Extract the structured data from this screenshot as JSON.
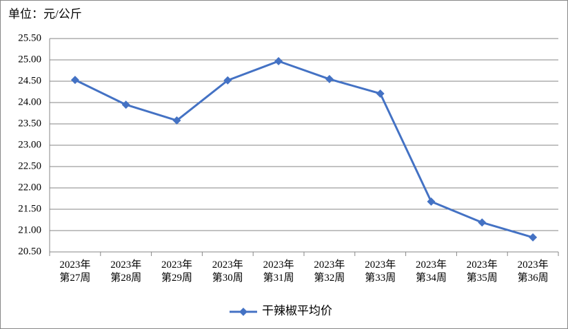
{
  "chart_data": {
    "type": "line",
    "unit_label": "单位：元/公斤",
    "categories": [
      "2023年\n第27周",
      "2023年\n第28周",
      "2023年\n第29周",
      "2023年\n第30周",
      "2023年\n第31周",
      "2023年\n第32周",
      "2023年\n第33周",
      "2023年\n第34周",
      "2023年\n第35周",
      "2023年\n第36周"
    ],
    "series": [
      {
        "name": "干辣椒平均价",
        "color": "#4472c4",
        "values": [
          24.53,
          23.95,
          23.58,
          24.52,
          24.97,
          24.55,
          24.21,
          21.68,
          21.19,
          20.84
        ]
      }
    ],
    "ylim": [
      20.5,
      25.5
    ],
    "yticks": [
      {
        "value": 20.5,
        "label": "20.50"
      },
      {
        "value": 21,
        "label": "21.00"
      },
      {
        "value": 21.5,
        "label": "21.50"
      },
      {
        "value": 22,
        "label": "22.00"
      },
      {
        "value": 22.5,
        "label": "22.50"
      },
      {
        "value": 23,
        "label": "23.00"
      },
      {
        "value": 23.5,
        "label": "23.50"
      },
      {
        "value": 24,
        "label": "24.00"
      },
      {
        "value": 24.5,
        "label": "24.50"
      },
      {
        "value": 25,
        "label": "25.00"
      },
      {
        "value": 25.5,
        "label": "25.50"
      }
    ],
    "grid": true,
    "legend": "bottom"
  }
}
